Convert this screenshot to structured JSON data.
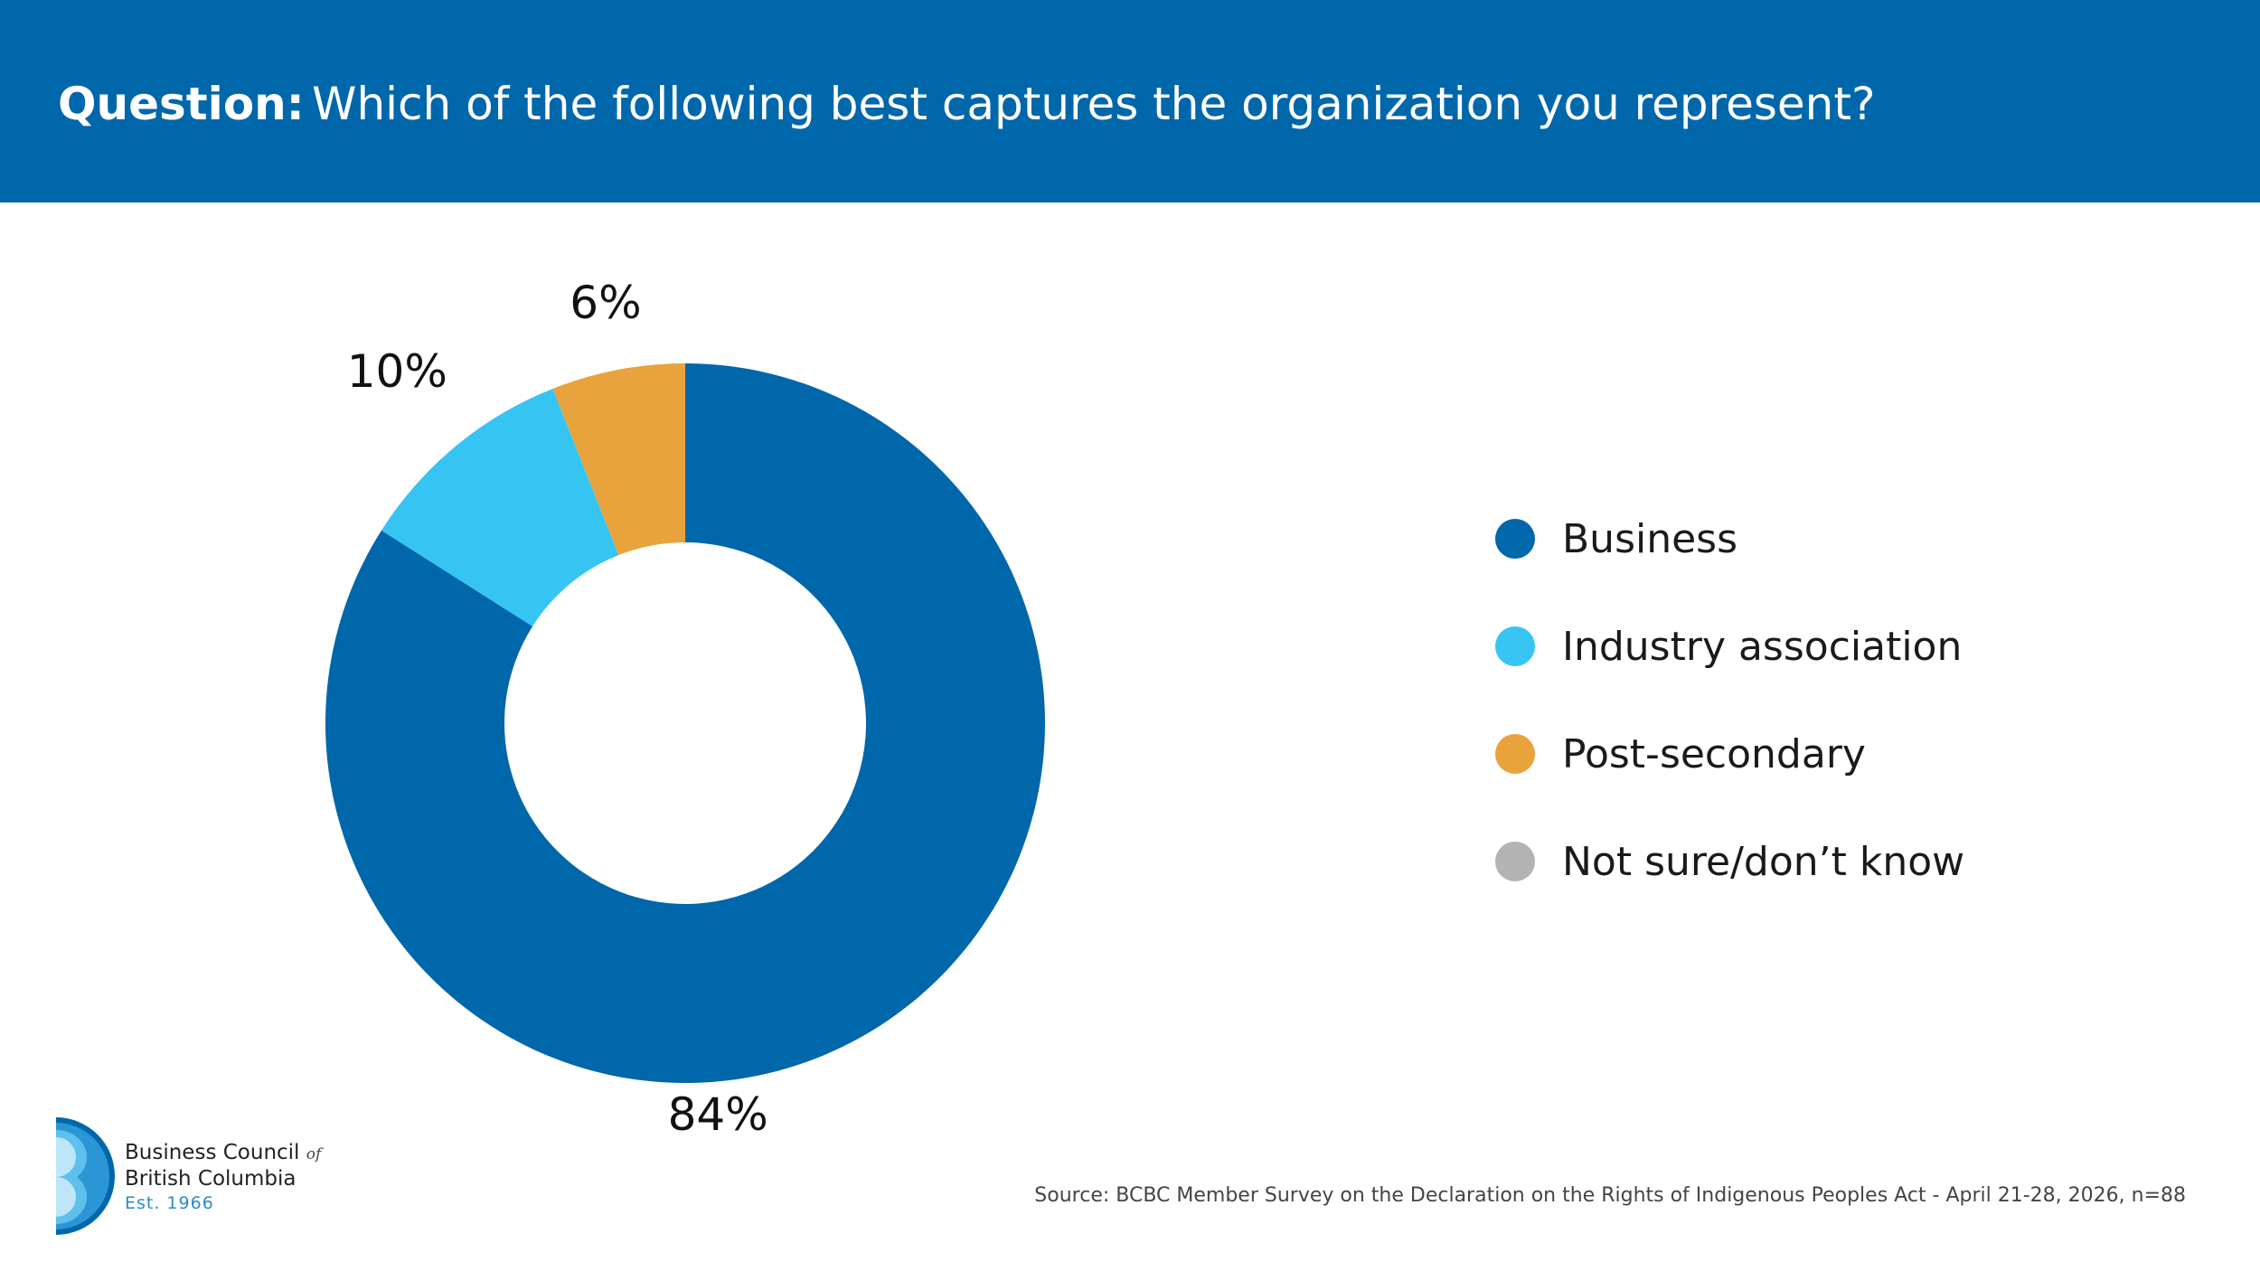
{
  "header": {
    "question_label": "Question:",
    "question_text": "Which of the following best captures the organization you represent?"
  },
  "chart_data": {
    "type": "pie",
    "variant": "donut",
    "categories": [
      "Business",
      "Industry association",
      "Post-secondary",
      "Not sure/don’t know"
    ],
    "values": [
      84,
      10,
      6,
      0
    ],
    "labels": [
      "84%",
      "10%",
      "6%",
      ""
    ],
    "colors": [
      "#0067ab",
      "#36c5f3",
      "#e8a33c",
      "#b3b3b3"
    ],
    "legend_position": "right"
  },
  "source": "Source: BCBC Member Survey on the Declaration on the Rights of Indigenous Peoples Act - April 21-28, 2026, n=88",
  "logo": {
    "line1": "Business Council",
    "of": "of",
    "line2": "British Columbia",
    "est": "Est. 1966"
  }
}
